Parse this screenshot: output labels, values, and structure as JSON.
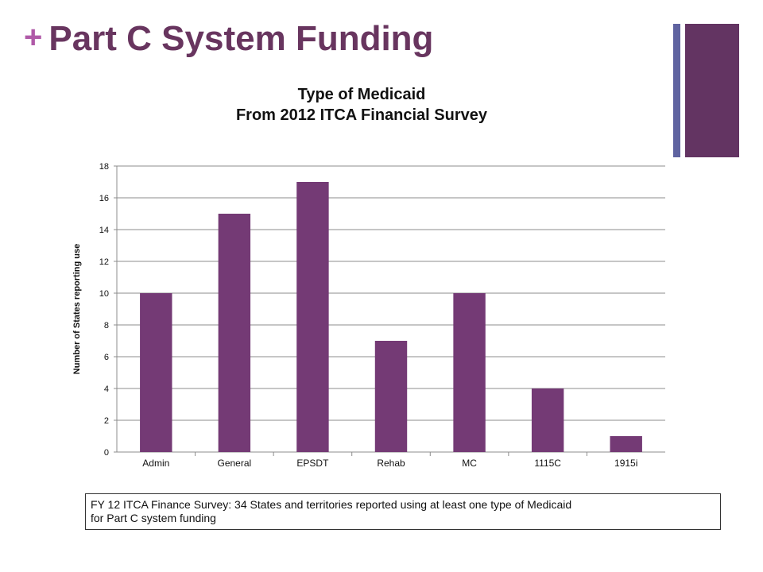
{
  "slide": {
    "plus": "+",
    "title": "Part C System Funding",
    "note_lines": [
      "FY 12 ITCA Finance Survey: 34 States and territories reported using at least one type of  Medicaid",
      "for Part C system funding"
    ]
  },
  "colors": {
    "bar": "#743a75",
    "title": "#68355f",
    "plus": "#b05aa8",
    "accent_thin": "#5f63a0",
    "accent_thick": "#633462"
  },
  "chart_data": {
    "type": "bar",
    "title_lines": [
      "Type of Medicaid",
      "From 2012 ITCA Financial Survey"
    ],
    "categories": [
      "Admin",
      "General",
      "EPSDT",
      "Rehab",
      "MC",
      "1115C",
      "1915i"
    ],
    "values": [
      10,
      15,
      17,
      7,
      10,
      4,
      1
    ],
    "xlabel": "",
    "ylabel": "Number of States reporting use",
    "ylim": [
      0,
      18
    ],
    "yticks": [
      "0",
      "2",
      "4",
      "6",
      "8",
      "10",
      "12",
      "14",
      "16",
      "18"
    ],
    "grid": true,
    "legend": "none"
  }
}
